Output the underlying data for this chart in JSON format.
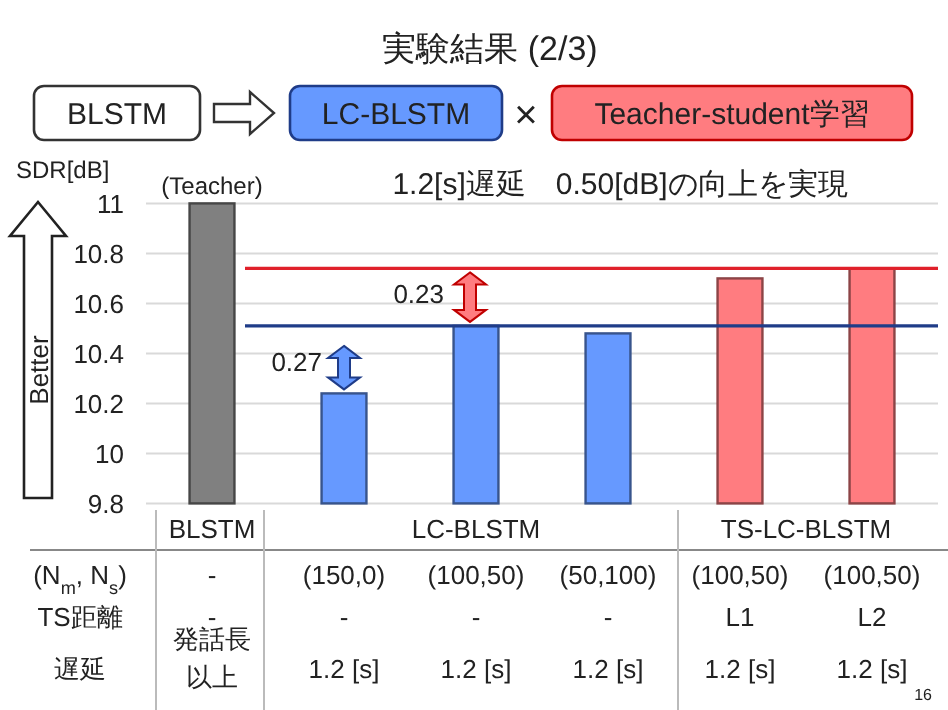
{
  "chart_data": {
    "type": "bar",
    "title": "実験結果 (2/3)",
    "subtitle": "1.2[s]遅延　0.50[dB]の向上を実現",
    "ylabel": "SDR[dB]",
    "categories": [
      null,
      null,
      null,
      null,
      null,
      null
    ],
    "values": [
      11.0,
      10.24,
      10.51,
      10.48,
      10.7,
      10.74
    ],
    "colors": [
      "#808080",
      "#6699ff",
      "#6699ff",
      "#6699ff",
      "#ff7c80",
      "#ff7c80"
    ],
    "ylim": [
      9.8,
      11
    ],
    "yticks": [
      9.8,
      10,
      10.2,
      10.4,
      10.6,
      10.8,
      11
    ],
    "grid": "y",
    "ref_lines": [
      {
        "axis": "y",
        "value": 10.51,
        "color": "#1f3c88"
      },
      {
        "axis": "y",
        "value": 10.74,
        "color": "#e0202a"
      }
    ],
    "annotations": [
      "(Teacher)",
      "0.27",
      "0.23",
      "BLSTM",
      "LC-BLSTM",
      "×",
      "Teacher-student学習",
      "Better",
      "BLSTM",
      "LC-BLSTM",
      "TS-LC-BLSTM",
      "(N$_{m}$, N$_{s}$)",
      "TS距離",
      "遅延",
      "-",
      "(150,0)",
      "(100,50)",
      "(50,100)",
      "(100,50)",
      "(100,50)",
      "-",
      "-",
      "-",
      "-",
      "L1",
      "L2",
      "発話長",
      "1.2 [s]",
      "1.2 [s]",
      "1.2 [s]",
      "1.2 [s]",
      "1.2 [s]",
      "以上",
      "16"
    ]
  }
}
